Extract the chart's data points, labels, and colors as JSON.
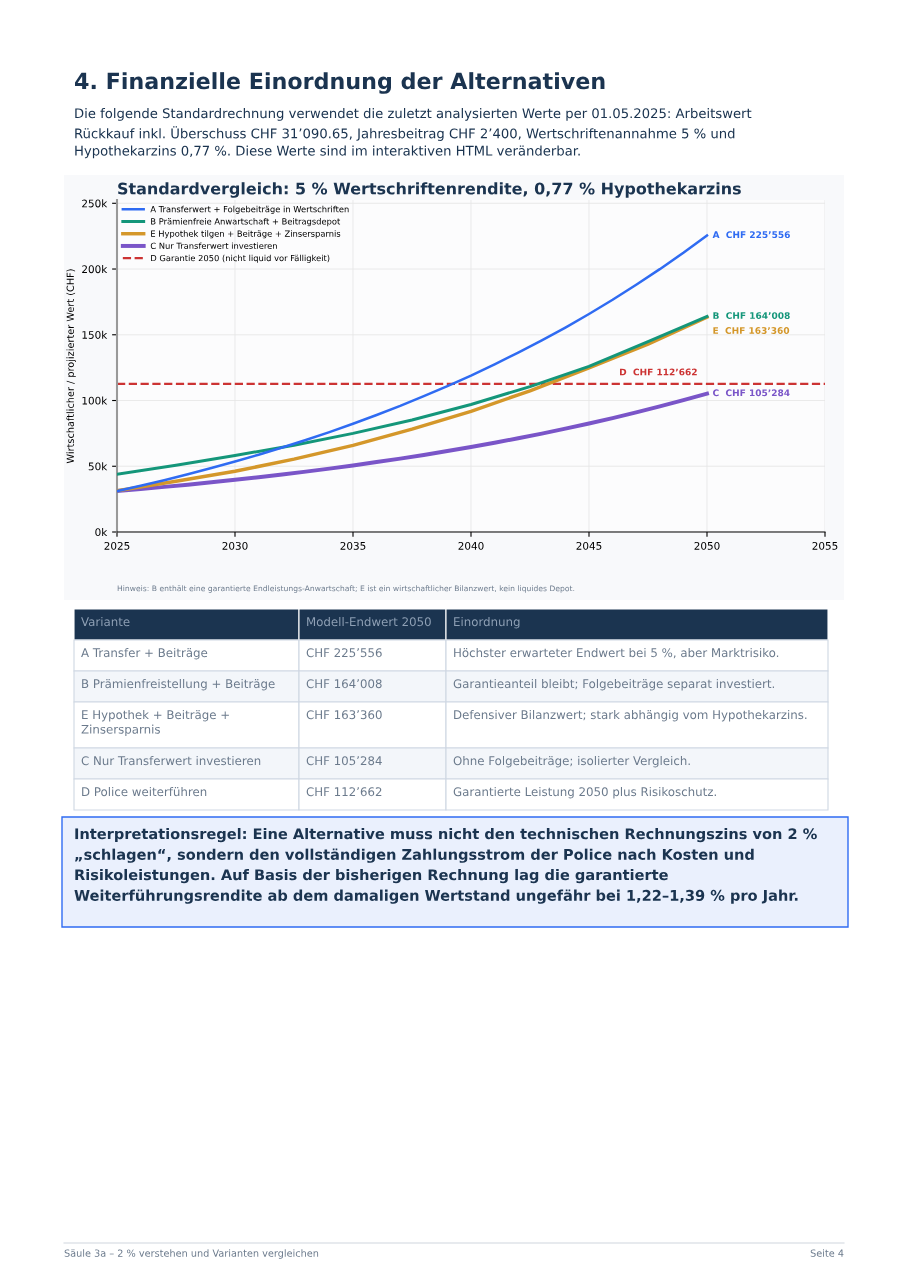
{
  "chart_data": [
    {
      "type": "other",
      "title": "4. Finanzielle Einordnung der Alternativen",
      "subtitle": "Die folgende Standardrechnung verwendet die zuletzt analysierten Werte per 01.05.2025: Arbeitswert Rückkauf inkl. Überschuss CHF 31’090.65, Jahresbeitrag CHF 2’400, Wertschriftenannahme 5 % und Hypothekarzins 0,77 %. Diese Werte sind im interaktiven HTML veränderbar."
    },
    {
      "type": "line",
      "title": "Standardvergleich: 5 % Wertschriftenrendite, 0,77 % Hypothekarzins",
      "ylabel": "Wirtschaftlicher / projizierter Wert (CHF)",
      "xlim": [
        2025,
        2055
      ],
      "xticks": [
        2025,
        2030,
        2035,
        2040,
        2045,
        2050,
        2055
      ],
      "ylim": [
        0,
        252500
      ],
      "yticks": [
        {
          "value": 0,
          "label": "0k"
        },
        {
          "value": 50000,
          "label": "50k"
        },
        {
          "value": 100000,
          "label": "100k"
        },
        {
          "value": 150000,
          "label": "150k"
        },
        {
          "value": 200000,
          "label": "200k"
        },
        {
          "value": 250000,
          "label": "250k"
        }
      ],
      "grid": true,
      "legend": "top left",
      "line_style": "solid",
      "marker": "none",
      "series": [
        {
          "name": "A Transferwert + Folgebeiträge in Wertschriften",
          "color": "#2f6bf2",
          "x": [
            2025,
            2026,
            2027,
            2028,
            2029,
            2030,
            2031,
            2032,
            2033,
            2034,
            2035,
            2036,
            2037,
            2038,
            2039,
            2040,
            2041,
            2042,
            2043,
            2044,
            2045,
            2046,
            2047,
            2048,
            2049,
            2050
          ],
          "values": [
            31100,
            35200,
            39400,
            43900,
            48700,
            53600,
            58800,
            64300,
            70000,
            76000,
            82300,
            89000,
            95900,
            103300,
            111000,
            119000,
            127500,
            136400,
            145700,
            155500,
            165800,
            176600,
            188000,
            199900,
            212400,
            225556
          ],
          "value_labels": [
            null,
            null,
            null,
            null,
            null,
            null,
            null,
            null,
            null,
            null,
            null,
            null,
            null,
            null,
            null,
            null,
            null,
            null,
            null,
            null,
            null,
            null,
            null,
            null,
            null,
            "A  CHF 225’556"
          ]
        },
        {
          "name": "B Prämienfreie Anwartschaft + Beitragsdepot",
          "color": "#14967a",
          "x": [
            2025,
            2027.5,
            2030,
            2032.5,
            2035,
            2037.5,
            2040,
            2042.5,
            2045,
            2047.5,
            2050
          ],
          "values": [
            43900,
            50800,
            58200,
            66000,
            75000,
            85200,
            97000,
            110600,
            126000,
            144800,
            164008
          ],
          "value_labels": [
            null,
            null,
            null,
            null,
            null,
            null,
            null,
            null,
            null,
            null,
            "B  CHF 164’008"
          ]
        },
        {
          "name": "E Hypothek tilgen + Beiträge + Zinsersparnis",
          "color": "#d4972a",
          "x": [
            2025,
            2027.5,
            2030,
            2032.5,
            2035,
            2037.5,
            2040,
            2042.5,
            2045,
            2047.5,
            2050
          ],
          "values": [
            31400,
            38600,
            46200,
            55400,
            65900,
            78200,
            91800,
            107400,
            124800,
            142800,
            163360
          ],
          "value_labels": [
            null,
            null,
            null,
            null,
            null,
            null,
            null,
            null,
            null,
            null,
            "E  CHF 163’360"
          ]
        },
        {
          "name": "C Nur Transferwert investieren",
          "color": "#7a55c8",
          "x": [
            2025,
            2026,
            2027,
            2028,
            2029,
            2030,
            2031,
            2032,
            2033,
            2034,
            2035,
            2036,
            2037,
            2038,
            2039,
            2040,
            2041,
            2042,
            2043,
            2044,
            2045,
            2046,
            2047,
            2048,
            2049,
            2050
          ],
          "values": [
            31100,
            32600,
            34300,
            36000,
            37800,
            39700,
            41700,
            43700,
            45900,
            48200,
            50600,
            53200,
            55800,
            58600,
            61600,
            64600,
            67900,
            71300,
            74800,
            78600,
            82500,
            86600,
            91000,
            95500,
            100300,
            105284
          ],
          "value_labels": [
            null,
            null,
            null,
            null,
            null,
            null,
            null,
            null,
            null,
            null,
            null,
            null,
            null,
            null,
            null,
            null,
            null,
            null,
            null,
            null,
            null,
            null,
            null,
            null,
            null,
            "C  CHF 105’284"
          ]
        }
      ],
      "ref_lines": [
        {
          "axis": "y",
          "value": 112662,
          "label": "D Garantie 2050 (nicht liquid vor Fälligkeit)",
          "color": "#cc3333",
          "line_style": "dashed"
        }
      ],
      "annotations": [
        {
          "text": "D  CHF 112’662",
          "x": 2049.6,
          "y": 112662
        },
        "Hinweis: B enthält eine garantierte Endleistungs-Anwartschaft; E ist ein wirtschaftlicher Bilanzwert, kein liquides Depot."
      ]
    },
    {
      "type": "other",
      "categories": [
        "Variante",
        "Modell-Endwert 2050",
        "Einordnung"
      ],
      "annotations": [
        "A Transfer + Beiträge",
        "CHF 225’556",
        "Höchster erwarteter Endwert bei 5 %, aber Marktrisiko.",
        "B Prämienfreistellung + Beiträge",
        "CHF 164’008",
        "Garantieanteil bleibt; Folgebeiträge separat investiert.",
        "E Hypothek + Beiträge + Zinsersparnis",
        "CHF 163’360",
        "Defensiver Bilanzwert; stark abhängig vom Hypothekarzins.",
        "C Nur Transferwert investieren",
        "CHF 105’284",
        "Ohne Folgebeiträge; isolierter Vergleich.",
        "D Police weiterführen",
        "CHF 112’662",
        "Garantierte Leistung 2050 plus Risikoschutz."
      ]
    },
    {
      "type": "other",
      "title": "Interpretationsregel: Eine Alternative muss nicht den technischen Rechnungszins von 2 % „schlagen“, sondern den vollständigen Zahlungsstrom der Police nach Kosten und Risikoleistungen. Auf Basis der bisherigen Rechnung lag die garantierte Weiterführungsrendite ab dem damaligen Wertstand ungefähr bei 1,22–1,39 % pro Jahr."
    },
    {
      "type": "other",
      "annotations": [
        "Säule 3a – 2 % verstehen und Varianten vergleichen",
        "Seite 4"
      ]
    }
  ]
}
